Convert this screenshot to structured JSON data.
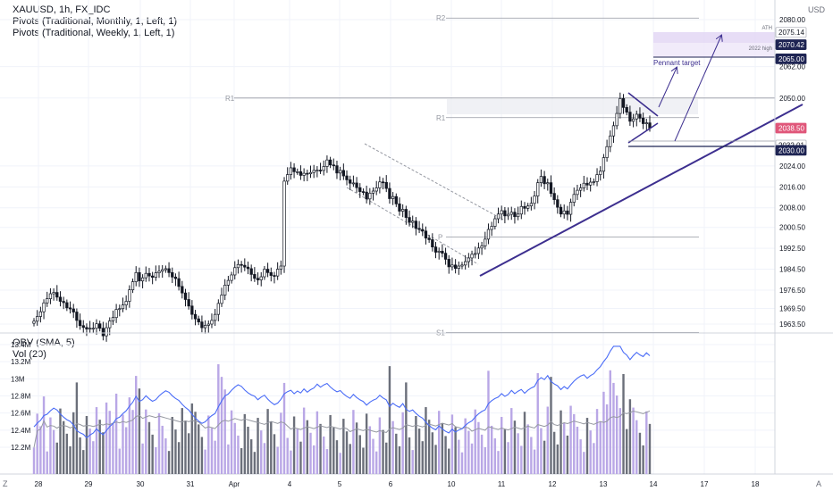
{
  "header": {
    "symbol": "XAUUSD, 1h, FX_IDC",
    "indicator_1": "Pivots (Traditional, Monthly, 1, Left, 1)",
    "indicator_2": "Pivots (Traditional, Weekly, 1, Left, 1)",
    "currency": "USD"
  },
  "lower_pane": {
    "indicator_1": "OBV (SMA, 5)",
    "indicator_2": "Vol (20)"
  },
  "footer": {
    "left_icon": "Z",
    "right_icon": "A"
  },
  "colors": {
    "candle": "#131722",
    "trendline": "#3d2f8f",
    "pivot_line": "#9598a1",
    "obv": "#4a6cf7",
    "vol_up": "#b9a7e6",
    "vol_down": "#6b6f7a",
    "ma": "#9598a1",
    "price_badge": "#e0577a",
    "dark_badge": "#1e2453",
    "zone": "#e3d7f5"
  },
  "chart_data": {
    "type": "candlestick",
    "price_axis": {
      "ylim": [
        1960,
        2085
      ],
      "ticks": [
        2080.0,
        2062.0,
        2050.0,
        2024.0,
        2016.0,
        2008.0,
        2000.5,
        1992.5,
        1984.5,
        1976.5,
        1969.5,
        1963.5
      ]
    },
    "price_badges": [
      {
        "label": "2075.14",
        "value": 2075.14,
        "style": "outline"
      },
      {
        "label": "2070.42",
        "value": 2070.42,
        "style": "dark"
      },
      {
        "label": "2065.00",
        "value": 2065.0,
        "style": "dark"
      },
      {
        "label": "2038.50",
        "value": 2038.5,
        "style": "red"
      },
      {
        "label": "2032.01",
        "value": 2032.01,
        "style": "outline"
      },
      {
        "label": "2030.00",
        "value": 2030.0,
        "style": "dark"
      }
    ],
    "x_ticks": [
      "28",
      "29",
      "30",
      "31",
      "Apr",
      "4",
      "5",
      "6",
      "10",
      "11",
      "12",
      "13",
      "14",
      "17",
      "18"
    ],
    "pivots": [
      {
        "label": "R2",
        "value": 2080.6
      },
      {
        "label": "R1",
        "value": 2050.0
      },
      {
        "label": "R1",
        "value": 2042.5
      },
      {
        "label": "P",
        "value": 1996.8
      },
      {
        "label": "S1",
        "value": 1960.3
      }
    ],
    "annotations": [
      {
        "text": "ATH",
        "value": 2075.14
      },
      {
        "text": "2022 high",
        "value": 2070.42
      },
      {
        "text": "Pennant target",
        "value": 2064.0
      }
    ],
    "obv_axis": {
      "ticks": [
        "13.4M",
        "13.2M",
        "13M",
        "12.8M",
        "12.6M",
        "12.4M",
        "12.2M"
      ],
      "ylim": [
        12.15,
        13.5
      ]
    },
    "close": [
      1964.6,
      1966.4,
      1968.2,
      1971.6,
      1973.2,
      1975.1,
      1975.6,
      1973.8,
      1972.2,
      1971.7,
      1969.7,
      1969.3,
      1968.1,
      1964.9,
      1962.9,
      1962.2,
      1961.6,
      1961.9,
      1961.9,
      1963.6,
      1961.9,
      1959.0,
      1962.1,
      1964.7,
      1966.0,
      1969.1,
      1969.4,
      1970.8,
      1972.2,
      1976.6,
      1979.7,
      1983.2,
      1980.0,
      1981.2,
      1982.9,
      1981.9,
      1981.4,
      1983.1,
      1983.7,
      1984.3,
      1984.7,
      1983.2,
      1981.5,
      1980.9,
      1977.9,
      1975.4,
      1972.9,
      1970.4,
      1967.2,
      1965.5,
      1964.3,
      1962.1,
      1963.0,
      1963.5,
      1964.9,
      1967.2,
      1971.4,
      1974.6,
      1978.4,
      1980.2,
      1982.3,
      1985.1,
      1986.3,
      1986.0,
      1985.3,
      1984.7,
      1982.5,
      1981.0,
      1980.4,
      1981.6,
      1984.5,
      1983.2,
      1982.1,
      1981.9,
      1984.5,
      1985.7,
      2018.2,
      2020.7,
      2023.3,
      2021.8,
      2021.8,
      2020.4,
      2021.2,
      2021.0,
      2021.5,
      2022.3,
      2022.4,
      2022.3,
      2023.8,
      2026.3,
      2024.4,
      2024.1,
      2021.3,
      2022.3,
      2020.2,
      2018.7,
      2017.4,
      2017.5,
      2015.7,
      2014.2,
      2014.0,
      2011.4,
      2013.6,
      2014.4,
      2015.6,
      2017.9,
      2017.7,
      2015.4,
      2011.5,
      2012.3,
      2009.5,
      2006.7,
      2007.4,
      2004.3,
      2002.4,
      2002.9,
      2000.1,
      1999.7,
      1999.1,
      1996.4,
      1995.8,
      1993.0,
      1991.0,
      1991.4,
      1990.6,
      1988.3,
      1985.4,
      1986.1,
      1984.8,
      1985.7,
      1986.1,
      1987.4,
      1988.8,
      1990.2,
      1990.5,
      1992.6,
      1993.4,
      1996.0,
      1999.7,
      2000.9,
      2003.8,
      2005.6,
      2006.9,
      2004.9,
      2005.5,
      2006.3,
      2004.6,
      2005.6,
      2008.5,
      2007.8,
      2008.7,
      2009.7,
      2012.5,
      2017.6,
      2020.0,
      2017.2,
      2017.6,
      2013.5,
      2011.1,
      2008.2,
      2005.6,
      2006.8,
      2005.5,
      2010.1,
      2013.1,
      2014.7,
      2015.6,
      2017.4,
      2016.7,
      2017.8,
      2018.0,
      2020.7,
      2022.0,
      2027.2,
      2031.4,
      2035.5,
      2039.4,
      2044.1,
      2049.8,
      2046.4,
      2044.6,
      2041.1,
      2042.0,
      2043.8,
      2042.3,
      2040.2,
      2040.5,
      2038.5
    ]
  }
}
